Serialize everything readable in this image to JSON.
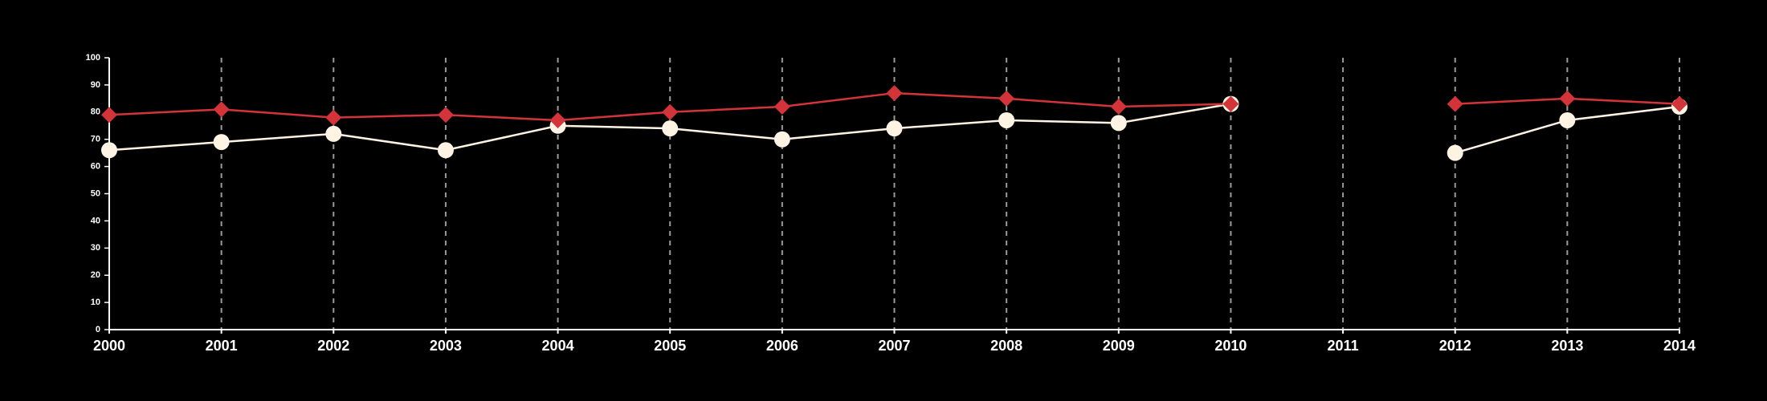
{
  "chart_data": {
    "type": "line",
    "x": [
      2000,
      2001,
      2002,
      2003,
      2004,
      2005,
      2006,
      2007,
      2008,
      2009,
      2010,
      2011,
      2012,
      2013,
      2014
    ],
    "series": [
      {
        "color": "#fff3e3",
        "marker": "circle",
        "values": [
          66,
          69,
          72,
          66,
          75,
          74,
          70,
          74,
          77,
          76,
          83,
          null,
          65,
          77,
          82
        ]
      },
      {
        "color": "#d2343a",
        "marker": "diamond",
        "values": [
          79,
          81,
          78,
          79,
          77,
          80,
          82,
          87,
          85,
          82,
          83,
          null,
          83,
          85,
          83
        ]
      }
    ],
    "xlim": [
      2000,
      2014
    ],
    "xticks": [
      2000,
      2001,
      2002,
      2003,
      2004,
      2005,
      2006,
      2007,
      2008,
      2009,
      2010,
      2011,
      2012,
      2013,
      2014
    ],
    "ylim": [
      0,
      100
    ],
    "yticks": [
      0,
      10,
      20,
      30,
      40,
      50,
      60,
      70,
      80,
      90,
      100
    ],
    "grid": "x"
  }
}
